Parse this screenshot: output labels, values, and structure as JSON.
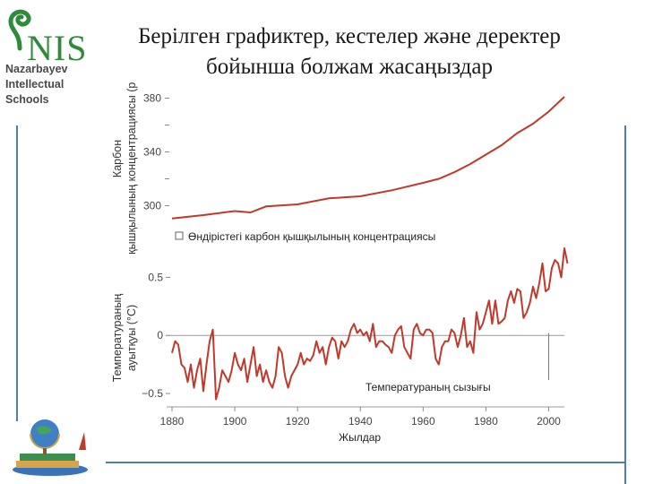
{
  "slide": {
    "title_line1": "Берілген графиктер, кестелер және деректер",
    "title_line2": "бойынша болжам жасаңыздар"
  },
  "logo": {
    "mark": "NIS",
    "line1": "Nazarbayev",
    "line2": "Intellectual",
    "line3": "Schools"
  },
  "colors": {
    "series": "#c0392b",
    "frame": "#4e7fa6",
    "axis": "#888888",
    "text": "#222222"
  },
  "chart_data": [
    {
      "type": "line",
      "ylabel": "Карбон қышқылының концентрациясы (ppm)",
      "legend": "Өндірістегі карбон қышқылының концентрациясы",
      "y_ticks": [
        "380",
        "340",
        "300"
      ],
      "ylim": [
        285,
        385
      ],
      "xlim": [
        1880,
        2005
      ],
      "x": [
        1880,
        1890,
        1900,
        1905,
        1910,
        1920,
        1930,
        1940,
        1950,
        1960,
        1965,
        1970,
        1975,
        1980,
        1985,
        1990,
        1995,
        2000,
        2005
      ],
      "y": [
        290.5,
        293,
        296,
        295,
        299.5,
        301,
        305.5,
        307,
        311.5,
        317,
        320,
        325,
        331,
        338,
        345,
        354,
        361,
        370,
        381
      ]
    },
    {
      "type": "line",
      "ylabel": "Температураның ауытқуы (°C)",
      "series_label": "Температураның сызығы",
      "y_ticks": [
        "0.5",
        "0",
        "−0.5"
      ],
      "ylim": [
        -0.6,
        0.75
      ],
      "xlabel": "Жылдар",
      "x_ticks": [
        "1880",
        "1900",
        "1920",
        "1940",
        "1960",
        "1980",
        "2000"
      ],
      "xlim": [
        1880,
        2005
      ],
      "x": [
        1880,
        1881,
        1882,
        1883,
        1884,
        1885,
        1886,
        1887,
        1888,
        1889,
        1890,
        1891,
        1892,
        1893,
        1894,
        1895,
        1896,
        1897,
        1898,
        1899,
        1900,
        1901,
        1902,
        1903,
        1904,
        1905,
        1906,
        1907,
        1908,
        1909,
        1910,
        1911,
        1912,
        1913,
        1914,
        1915,
        1916,
        1917,
        1918,
        1919,
        1920,
        1921,
        1922,
        1923,
        1924,
        1925,
        1926,
        1927,
        1928,
        1929,
        1930,
        1931,
        1932,
        1933,
        1934,
        1935,
        1936,
        1937,
        1938,
        1939,
        1940,
        1941,
        1942,
        1943,
        1944,
        1945,
        1946,
        1947,
        1948,
        1949,
        1950,
        1951,
        1952,
        1953,
        1954,
        1955,
        1956,
        1957,
        1958,
        1959,
        1960,
        1961,
        1962,
        1963,
        1964,
        1965,
        1966,
        1967,
        1968,
        1969,
        1970,
        1971,
        1972,
        1973,
        1974,
        1975,
        1976,
        1977,
        1978,
        1979,
        1980,
        1981,
        1982,
        1983,
        1984,
        1985,
        1986,
        1987,
        1988,
        1989,
        1990,
        1991,
        1992,
        1993,
        1994,
        1995,
        1996,
        1997,
        1998,
        1999,
        2000,
        2001,
        2002,
        2003,
        2004,
        2005,
        2006
      ],
      "y": [
        -0.15,
        -0.05,
        -0.08,
        -0.25,
        -0.28,
        -0.4,
        -0.25,
        -0.45,
        -0.3,
        -0.2,
        -0.48,
        -0.25,
        -0.05,
        0.05,
        -0.55,
        -0.45,
        -0.3,
        -0.35,
        -0.4,
        -0.3,
        -0.15,
        -0.25,
        -0.3,
        -0.2,
        -0.4,
        -0.25,
        -0.1,
        -0.35,
        -0.25,
        -0.4,
        -0.3,
        -0.4,
        -0.45,
        -0.35,
        -0.1,
        -0.15,
        -0.35,
        -0.45,
        -0.35,
        -0.3,
        -0.25,
        -0.15,
        -0.25,
        -0.2,
        -0.22,
        -0.17,
        -0.05,
        -0.15,
        -0.1,
        -0.25,
        -0.1,
        -0.02,
        -0.05,
        -0.2,
        -0.05,
        -0.1,
        -0.05,
        0.05,
        0.1,
        0.02,
        0.05,
        0.0,
        0.03,
        -0.05,
        0.1,
        -0.1,
        -0.05,
        -0.05,
        -0.08,
        -0.1,
        -0.15,
        0.0,
        0.05,
        0.08,
        -0.1,
        -0.15,
        -0.2,
        0.05,
        0.1,
        0.02,
        0.0,
        0.05,
        0.05,
        0.02,
        -0.2,
        -0.25,
        -0.1,
        -0.05,
        -0.05,
        0.05,
        0.02,
        -0.1,
        0.0,
        0.15,
        -0.1,
        -0.05,
        -0.15,
        0.2,
        0.05,
        0.1,
        0.2,
        0.3,
        0.1,
        0.3,
        0.1,
        0.12,
        0.15,
        0.3,
        0.38,
        0.28,
        0.4,
        0.38,
        0.15,
        0.2,
        0.28,
        0.42,
        0.32,
        0.45,
        0.62,
        0.38,
        0.4,
        0.58,
        0.65,
        0.62,
        0.5,
        0.75,
        0.62
      ]
    }
  ]
}
